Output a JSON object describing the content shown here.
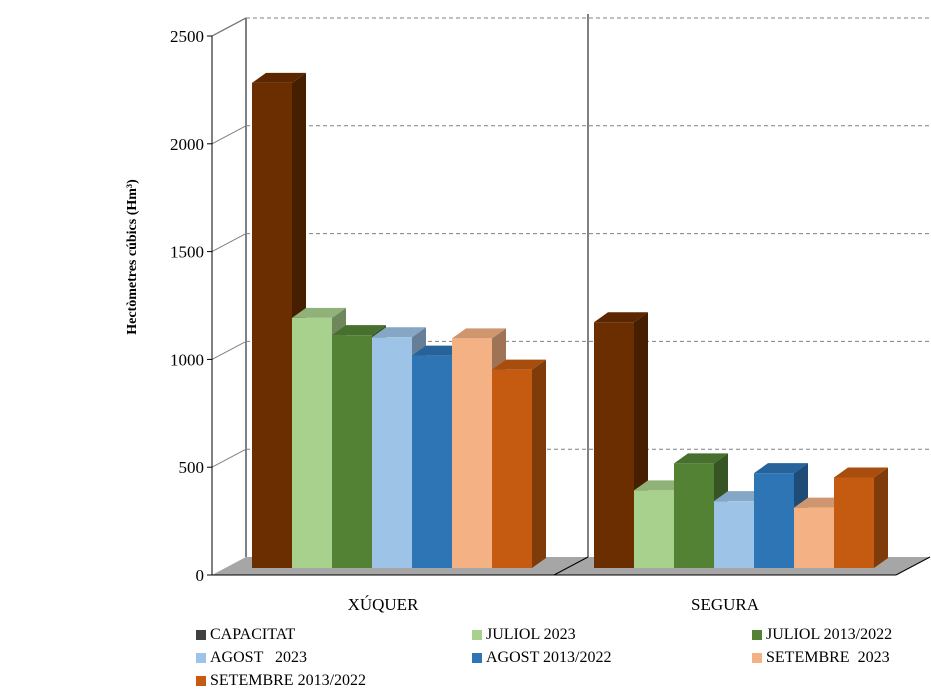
{
  "chart_data": {
    "type": "bar",
    "title": "",
    "xlabel": "",
    "ylabel": "Hectòmetres cúbics (Hm³)",
    "categories": [
      "XÚQUER",
      "SEGURA"
    ],
    "ylim": [
      0,
      2500
    ],
    "yticks": [
      0,
      500,
      1000,
      1500,
      2000,
      2500
    ],
    "grid": true,
    "legend_position": "bottom",
    "style": "3d-clustered-column",
    "series": [
      {
        "name": "CAPACITAT",
        "values": [
          2250,
          1140
        ],
        "color": "#6B2E00",
        "legend_color": "#404040"
      },
      {
        "name": "JULIOL 2023",
        "values": [
          1160,
          360
        ],
        "color": "#A9D18E"
      },
      {
        "name": "JULIOL 2013/2022",
        "values": [
          1080,
          485
        ],
        "color": "#548235"
      },
      {
        "name": "AGOST   2023",
        "values": [
          1070,
          310
        ],
        "color": "#9DC3E6"
      },
      {
        "name": "AGOST 2013/2022",
        "values": [
          985,
          440
        ],
        "color": "#2E75B6"
      },
      {
        "name": "SETEMBRE  2023",
        "values": [
          1065,
          280
        ],
        "color": "#F4B183"
      },
      {
        "name": "SETEMBRE 2013/2022",
        "values": [
          920,
          420
        ],
        "color": "#C55A11"
      }
    ]
  }
}
